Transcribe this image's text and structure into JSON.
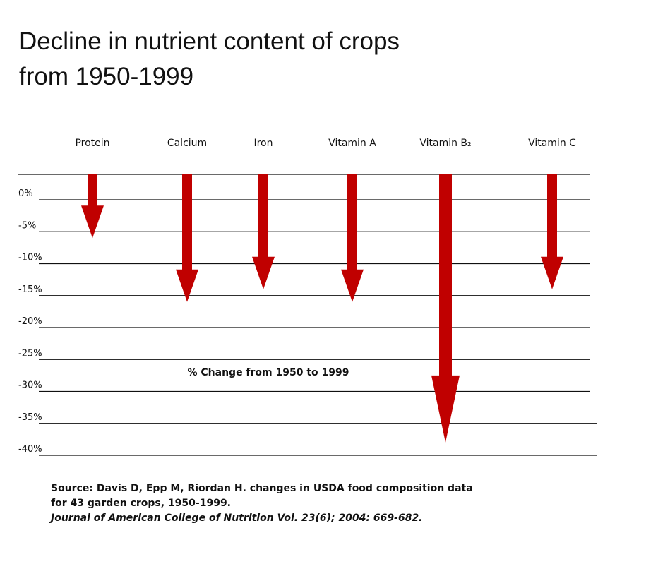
{
  "title_lines": [
    "Decline in nutrient content of crops",
    "from 1950-1999"
  ],
  "chart_data": {
    "type": "bar",
    "orientation": "downward-arrows",
    "title": "Decline in nutrient content of crops from 1950-1999",
    "categories": [
      "Protein",
      "Calcium",
      "Iron",
      "Vitamin A",
      "Vitamin B₂",
      "Vitamin C"
    ],
    "values": [
      -6,
      -16,
      -14,
      -16,
      -38,
      -14
    ],
    "xlabel": "",
    "ylabel": "",
    "annotation": "% Change from 1950 to 1999",
    "yticks": [
      "0%",
      "-5%",
      "-10%",
      "-15%",
      "-20%",
      "-25%",
      "-30%",
      "-35%",
      "-40%"
    ],
    "ylim": [
      -40,
      0
    ],
    "grid": true,
    "arrow_color": "#c00000"
  },
  "source": {
    "line1": "Source: Davis D, Epp M, Riordan H. changes in USDA food composition data",
    "line2": "for 43 garden crops, 1950-1999.",
    "journal": "Journal of American College of Nutrition Vol. 23(6); 2004: 669-682."
  }
}
